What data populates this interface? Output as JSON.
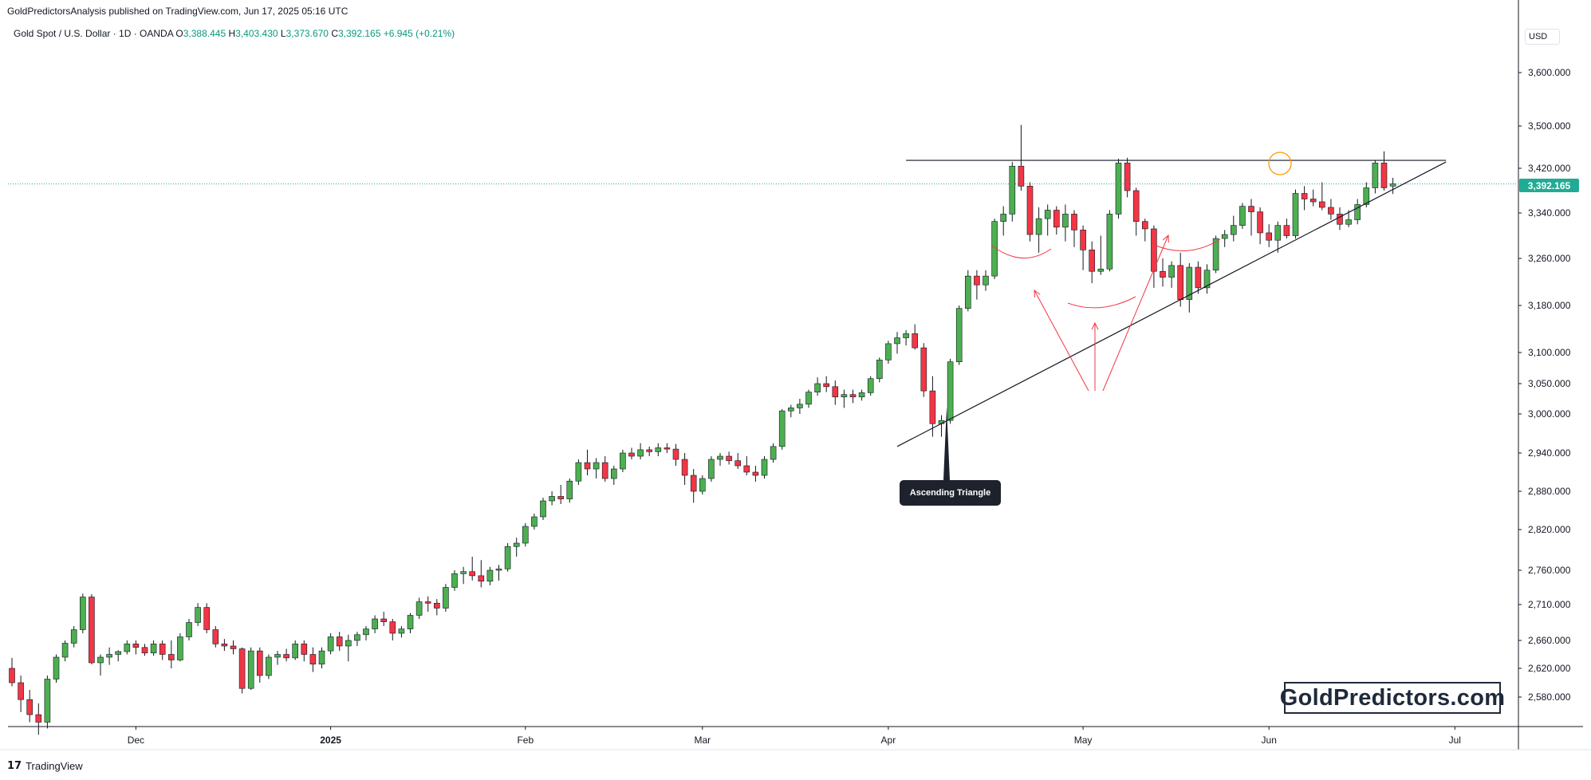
{
  "header": {
    "publisher_line": "GoldPredictorsAnalysis published on TradingView.com, Jun 17, 2025 05:16 UTC"
  },
  "legend": {
    "symbol": "Gold Spot / U.S. Dollar · 1D · OANDA",
    "open_label": "O",
    "open": "3,388.445",
    "high_label": "H",
    "high": "3,403.430",
    "low_label": "L",
    "low": "3,373.670",
    "close_label": "C",
    "close": "3,392.165",
    "change": "+6.945 (+0.21%)"
  },
  "price_scale": {
    "currency": "USD",
    "last_price": "3,392.165"
  },
  "annotations": {
    "callout": "Ascending Triangle",
    "watermark": "GoldPredictors.com"
  },
  "footer": {
    "brand": "TradingView",
    "logo_glyph": "𝟭𝟳"
  },
  "colors": {
    "up": "#4caf50",
    "down": "#f23645",
    "last_price": "#22ab94",
    "annotation": "#f23645",
    "trendline": "#131722"
  },
  "chart_data": {
    "type": "candlestick",
    "symbol": "XAUUSD",
    "timeframe": "1D",
    "ylim": [
      2540,
      3700
    ],
    "y_ticks": [
      2580,
      2620,
      2660,
      2710,
      2760,
      2820,
      2880,
      2940,
      3000,
      3050,
      3100,
      3180,
      3260,
      3340,
      3420,
      3500,
      3600
    ],
    "y_tick_labels": [
      "2,580.000",
      "2,620.000",
      "2,660.000",
      "2,710.000",
      "2,760.000",
      "2,820.000",
      "2,880.000",
      "2,940.000",
      "3,000.000",
      "3,050.000",
      "3,100.000",
      "3,180.000",
      "3,260.000",
      "3,340.000",
      "3,420.000",
      "3,500.000",
      "3,600.000"
    ],
    "x_labels": [
      {
        "label": "Dec",
        "index": 14
      },
      {
        "label": "2025",
        "index": 36
      },
      {
        "label": "Feb",
        "index": 58
      },
      {
        "label": "Mar",
        "index": 78
      },
      {
        "label": "Apr",
        "index": 99
      },
      {
        "label": "May",
        "index": 121
      },
      {
        "label": "Jun",
        "index": 142
      },
      {
        "label": "Jul",
        "index": 163
      }
    ],
    "resistance_level": 3435,
    "trendline": [
      {
        "index": 100,
        "value": 2950
      },
      {
        "index": 162,
        "value": 3432
      }
    ],
    "candles": [
      [
        2620,
        2635,
        2595,
        2600
      ],
      [
        2600,
        2610,
        2568,
        2578
      ],
      [
        2578,
        2590,
        2560,
        2566
      ],
      [
        2566,
        2575,
        2550,
        2560
      ],
      [
        2560,
        2610,
        2555,
        2605
      ],
      [
        2605,
        2640,
        2600,
        2636
      ],
      [
        2636,
        2660,
        2630,
        2656
      ],
      [
        2656,
        2680,
        2650,
        2675
      ],
      [
        2675,
        2726,
        2670,
        2721
      ],
      [
        2721,
        2725,
        2626,
        2628
      ],
      [
        2628,
        2640,
        2610,
        2636
      ],
      [
        2636,
        2650,
        2625,
        2640
      ],
      [
        2640,
        2646,
        2630,
        2644
      ],
      [
        2644,
        2660,
        2640,
        2655
      ],
      [
        2655,
        2660,
        2640,
        2650
      ],
      [
        2650,
        2655,
        2638,
        2642
      ],
      [
        2642,
        2660,
        2638,
        2655
      ],
      [
        2655,
        2660,
        2632,
        2640
      ],
      [
        2640,
        2660,
        2620,
        2632
      ],
      [
        2632,
        2670,
        2630,
        2665
      ],
      [
        2665,
        2690,
        2660,
        2685
      ],
      [
        2685,
        2712,
        2680,
        2706
      ],
      [
        2706,
        2712,
        2670,
        2675
      ],
      [
        2675,
        2680,
        2650,
        2655
      ],
      [
        2655,
        2662,
        2645,
        2652
      ],
      [
        2652,
        2660,
        2640,
        2648
      ],
      [
        2648,
        2650,
        2585,
        2592
      ],
      [
        2592,
        2650,
        2590,
        2645
      ],
      [
        2645,
        2650,
        2600,
        2610
      ],
      [
        2610,
        2640,
        2605,
        2636
      ],
      [
        2636,
        2645,
        2625,
        2640
      ],
      [
        2640,
        2648,
        2630,
        2635
      ],
      [
        2635,
        2660,
        2632,
        2655
      ],
      [
        2655,
        2660,
        2630,
        2640
      ],
      [
        2640,
        2650,
        2615,
        2626
      ],
      [
        2626,
        2650,
        2620,
        2645
      ],
      [
        2645,
        2670,
        2640,
        2665
      ],
      [
        2665,
        2672,
        2645,
        2652
      ],
      [
        2652,
        2668,
        2630,
        2660
      ],
      [
        2660,
        2672,
        2652,
        2668
      ],
      [
        2668,
        2680,
        2660,
        2676
      ],
      [
        2676,
        2695,
        2670,
        2690
      ],
      [
        2690,
        2700,
        2680,
        2686
      ],
      [
        2686,
        2690,
        2660,
        2670
      ],
      [
        2670,
        2680,
        2664,
        2676
      ],
      [
        2676,
        2698,
        2670,
        2695
      ],
      [
        2695,
        2720,
        2690,
        2714
      ],
      [
        2714,
        2722,
        2700,
        2712
      ],
      [
        2712,
        2718,
        2695,
        2705
      ],
      [
        2705,
        2740,
        2700,
        2735
      ],
      [
        2735,
        2760,
        2730,
        2755
      ],
      [
        2755,
        2765,
        2740,
        2758
      ],
      [
        2758,
        2780,
        2745,
        2752
      ],
      [
        2752,
        2775,
        2735,
        2744
      ],
      [
        2744,
        2765,
        2738,
        2760
      ],
      [
        2760,
        2768,
        2745,
        2762
      ],
      [
        2762,
        2800,
        2758,
        2795
      ],
      [
        2795,
        2808,
        2780,
        2800
      ],
      [
        2800,
        2830,
        2795,
        2825
      ],
      [
        2825,
        2845,
        2820,
        2840
      ],
      [
        2840,
        2870,
        2835,
        2865
      ],
      [
        2865,
        2880,
        2858,
        2872
      ],
      [
        2872,
        2890,
        2860,
        2868
      ],
      [
        2868,
        2900,
        2862,
        2896
      ],
      [
        2896,
        2930,
        2890,
        2925
      ],
      [
        2925,
        2945,
        2905,
        2915
      ],
      [
        2915,
        2932,
        2900,
        2925
      ],
      [
        2925,
        2935,
        2895,
        2900
      ],
      [
        2900,
        2920,
        2890,
        2915
      ],
      [
        2915,
        2945,
        2910,
        2940
      ],
      [
        2940,
        2948,
        2930,
        2935
      ],
      [
        2935,
        2955,
        2930,
        2945
      ],
      [
        2945,
        2950,
        2935,
        2942
      ],
      [
        2942,
        2955,
        2935,
        2948
      ],
      [
        2948,
        2955,
        2940,
        2946
      ],
      [
        2946,
        2954,
        2920,
        2930
      ],
      [
        2930,
        2940,
        2890,
        2905
      ],
      [
        2905,
        2915,
        2862,
        2880
      ],
      [
        2880,
        2905,
        2875,
        2900
      ],
      [
        2900,
        2935,
        2895,
        2930
      ],
      [
        2930,
        2940,
        2920,
        2935
      ],
      [
        2935,
        2942,
        2922,
        2928
      ],
      [
        2928,
        2940,
        2915,
        2920
      ],
      [
        2920,
        2935,
        2905,
        2910
      ],
      [
        2910,
        2920,
        2895,
        2905
      ],
      [
        2905,
        2935,
        2900,
        2930
      ],
      [
        2930,
        2955,
        2925,
        2950
      ],
      [
        2950,
        3008,
        2945,
        3005
      ],
      [
        3005,
        3015,
        2995,
        3010
      ],
      [
        3010,
        3025,
        3000,
        3016
      ],
      [
        3016,
        3040,
        3010,
        3036
      ],
      [
        3036,
        3060,
        3030,
        3050
      ],
      [
        3050,
        3062,
        3036,
        3045
      ],
      [
        3045,
        3055,
        3015,
        3028
      ],
      [
        3028,
        3040,
        3010,
        3032
      ],
      [
        3032,
        3040,
        3018,
        3028
      ],
      [
        3028,
        3040,
        3022,
        3035
      ],
      [
        3035,
        3062,
        3030,
        3058
      ],
      [
        3058,
        3092,
        3052,
        3088
      ],
      [
        3088,
        3120,
        3082,
        3115
      ],
      [
        3115,
        3135,
        3098,
        3125
      ],
      [
        3125,
        3138,
        3112,
        3132
      ],
      [
        3132,
        3148,
        3105,
        3108
      ],
      [
        3108,
        3116,
        3028,
        3038
      ],
      [
        3038,
        3062,
        2965,
        2985
      ],
      [
        2985,
        2998,
        2965,
        2990
      ],
      [
        2990,
        3090,
        2985,
        3085
      ],
      [
        3085,
        3180,
        3080,
        3175
      ],
      [
        3175,
        3240,
        3170,
        3230
      ],
      [
        3230,
        3240,
        3190,
        3215
      ],
      [
        3215,
        3240,
        3205,
        3230
      ],
      [
        3230,
        3330,
        3225,
        3325
      ],
      [
        3325,
        3352,
        3300,
        3338
      ],
      [
        3338,
        3432,
        3325,
        3424
      ],
      [
        3424,
        3502,
        3380,
        3388
      ],
      [
        3388,
        3395,
        3290,
        3302
      ],
      [
        3302,
        3350,
        3270,
        3330
      ],
      [
        3330,
        3355,
        3300,
        3345
      ],
      [
        3345,
        3352,
        3302,
        3315
      ],
      [
        3315,
        3355,
        3290,
        3338
      ],
      [
        3338,
        3345,
        3280,
        3310
      ],
      [
        3310,
        3318,
        3240,
        3275
      ],
      [
        3275,
        3290,
        3218,
        3238
      ],
      [
        3238,
        3300,
        3232,
        3242
      ],
      [
        3242,
        3345,
        3238,
        3338
      ],
      [
        3338,
        3438,
        3330,
        3430
      ],
      [
        3430,
        3440,
        3368,
        3380
      ],
      [
        3380,
        3385,
        3300,
        3325
      ],
      [
        3325,
        3330,
        3290,
        3312
      ],
      [
        3312,
        3318,
        3210,
        3238
      ],
      [
        3238,
        3260,
        3212,
        3228
      ],
      [
        3228,
        3255,
        3210,
        3248
      ],
      [
        3248,
        3270,
        3178,
        3190
      ],
      [
        3190,
        3252,
        3168,
        3245
      ],
      [
        3245,
        3255,
        3200,
        3210
      ],
      [
        3210,
        3250,
        3200,
        3240
      ],
      [
        3240,
        3300,
        3235,
        3295
      ],
      [
        3295,
        3310,
        3280,
        3302
      ],
      [
        3302,
        3335,
        3290,
        3318
      ],
      [
        3318,
        3358,
        3312,
        3352
      ],
      [
        3352,
        3365,
        3300,
        3342
      ],
      [
        3342,
        3350,
        3285,
        3305
      ],
      [
        3305,
        3320,
        3280,
        3292
      ],
      [
        3292,
        3325,
        3270,
        3318
      ],
      [
        3318,
        3330,
        3295,
        3300
      ],
      [
        3300,
        3382,
        3295,
        3375
      ],
      [
        3375,
        3388,
        3345,
        3365
      ],
      [
        3365,
        3382,
        3352,
        3360
      ],
      [
        3360,
        3395,
        3345,
        3350
      ],
      [
        3350,
        3365,
        3328,
        3338
      ],
      [
        3338,
        3350,
        3310,
        3320
      ],
      [
        3320,
        3345,
        3315,
        3328
      ],
      [
        3328,
        3365,
        3320,
        3355
      ],
      [
        3355,
        3395,
        3350,
        3385
      ],
      [
        3385,
        3435,
        3375,
        3430
      ],
      [
        3430,
        3452,
        3380,
        3385
      ],
      [
        3388,
        3403,
        3374,
        3392
      ]
    ]
  }
}
